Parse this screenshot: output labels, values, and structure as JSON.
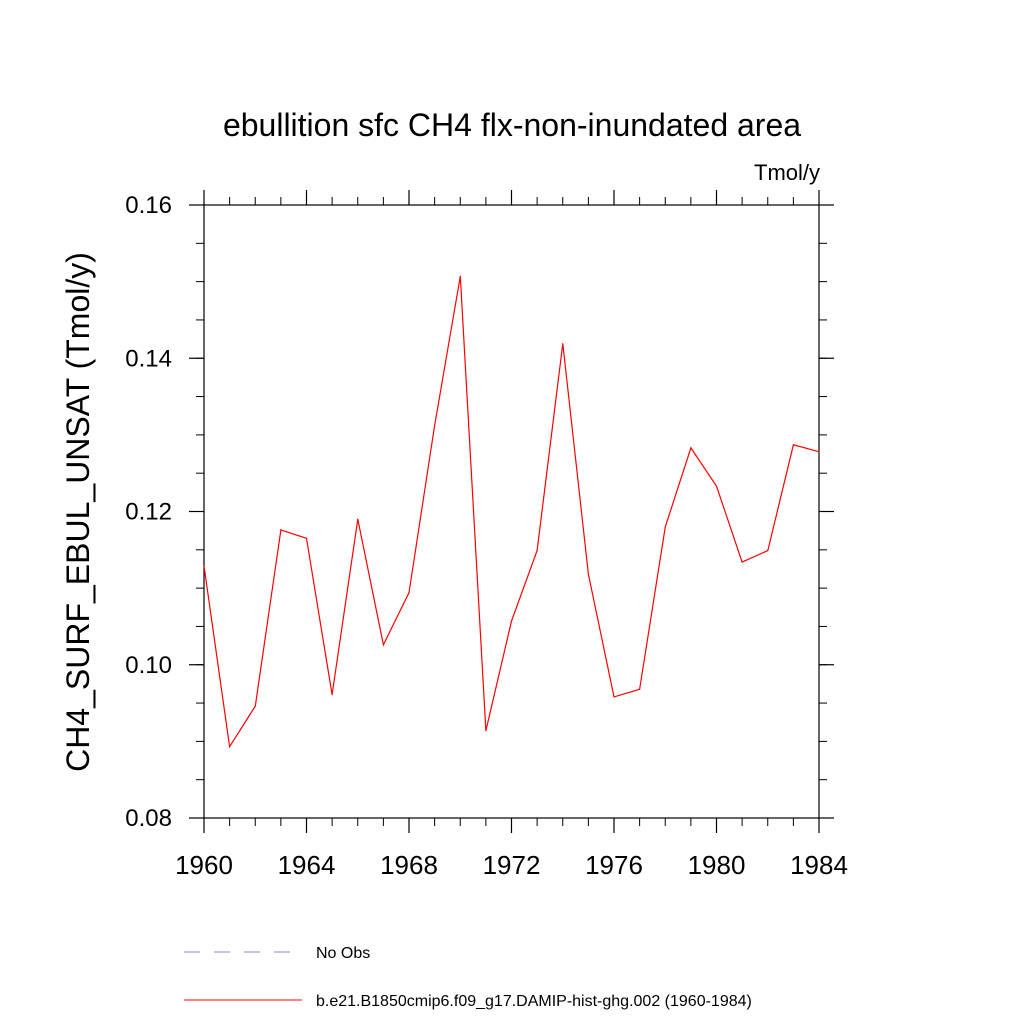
{
  "chart_data": {
    "type": "line",
    "title": "ebullition sfc CH4 flx-non-inundated area",
    "units_label": "Tmol/y",
    "ylabel": "CH4_SURF_EBUL_UNSAT  (Tmol/y)",
    "xlabel": "",
    "xlim": [
      1960,
      1984
    ],
    "ylim": [
      0.08,
      0.16
    ],
    "x_ticks": [
      1960,
      1964,
      1968,
      1972,
      1976,
      1980,
      1984
    ],
    "x_tick_labels": [
      "1960",
      "1964",
      "1968",
      "1972",
      "1976",
      "1980",
      "1984"
    ],
    "y_ticks": [
      0.08,
      0.1,
      0.12,
      0.14,
      0.16
    ],
    "y_tick_labels": [
      "0.08",
      "0.10",
      "0.12",
      "0.14",
      "0.16"
    ],
    "x_minor_step": 1,
    "y_minor_step": 0.005,
    "grid": false,
    "legend_position": "bottom",
    "series": [
      {
        "name": "b.e21.B1850cmip6.f09_g17.DAMIP-hist-ghg.002 (1960-1984)",
        "color": "#ff0000",
        "style": "solid",
        "x": [
          1960,
          1961,
          1962,
          1963,
          1964,
          1965,
          1966,
          1967,
          1968,
          1969,
          1970,
          1971,
          1972,
          1973,
          1974,
          1975,
          1976,
          1977,
          1978,
          1979,
          1980,
          1981,
          1982,
          1983,
          1984
        ],
        "values": [
          0.1129,
          0.0893,
          0.0946,
          0.1176,
          0.1165,
          0.0961,
          0.119,
          0.1026,
          0.1094,
          0.1312,
          0.1507,
          0.0914,
          0.1057,
          0.1149,
          0.1419,
          0.1118,
          0.0958,
          0.0968,
          0.118,
          0.1283,
          0.1233,
          0.1134,
          0.1149,
          0.1287,
          0.1278
        ]
      }
    ],
    "legend": [
      {
        "label": "No Obs",
        "color": "#8888cc",
        "style": "dashed"
      },
      {
        "label": "b.e21.B1850cmip6.f09_g17.DAMIP-hist-ghg.002 (1960-1984)",
        "color": "#ff0000",
        "style": "solid"
      }
    ]
  }
}
